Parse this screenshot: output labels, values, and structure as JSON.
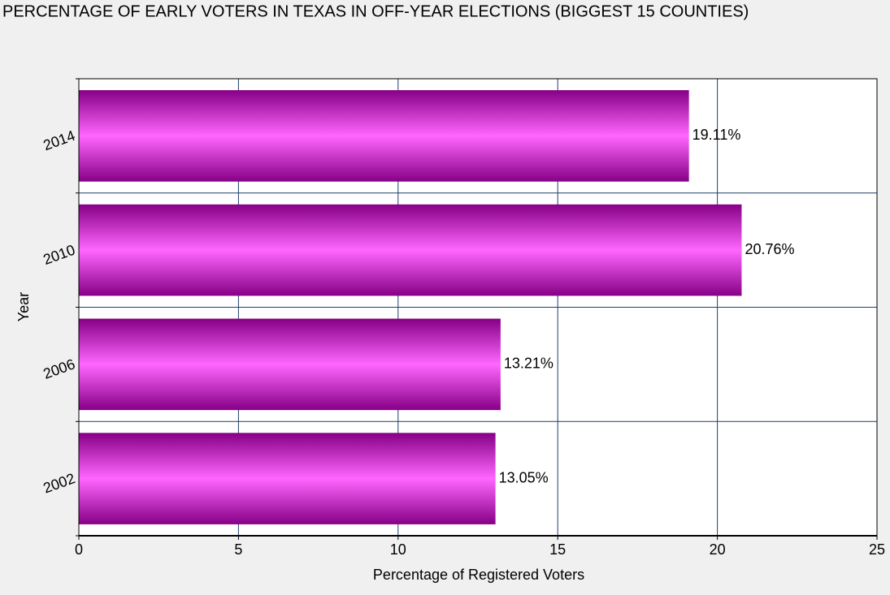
{
  "chart_data": {
    "type": "bar",
    "orientation": "horizontal",
    "title": "PERCENTAGE OF EARLY VOTERS IN TEXAS IN OFF-YEAR ELECTIONS (BIGGEST 15 COUNTIES)",
    "x_label": "Percentage of Registered Voters",
    "y_label": "Year",
    "categories": [
      "2014",
      "2010",
      "2006",
      "2002"
    ],
    "values": [
      19.11,
      20.76,
      13.21,
      13.05
    ],
    "value_labels": [
      "19.11%",
      "20.76%",
      "13.21%",
      "13.05%"
    ],
    "color": "#ff66ff",
    "xlim": [
      0,
      25
    ],
    "xticks": [
      0,
      5,
      10,
      15,
      20,
      25
    ],
    "grid": true
  }
}
